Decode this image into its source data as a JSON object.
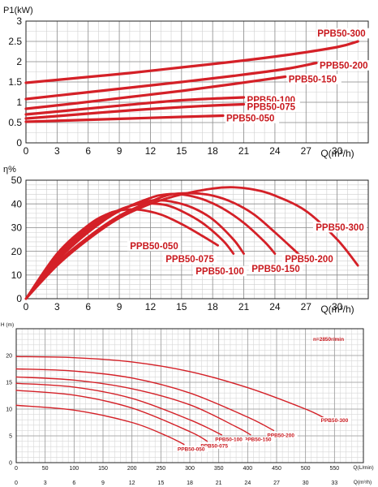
{
  "charts": [
    {
      "type": "line",
      "ylabel": "P1(kW)",
      "xlabel": "Q(m³/h)",
      "xlim": [
        0,
        33
      ],
      "ylim": [
        0,
        3
      ],
      "xticks": [
        0,
        3,
        6,
        9,
        12,
        15,
        18,
        21,
        24,
        27,
        30
      ],
      "yticks": [
        0,
        0.5,
        1,
        1.5,
        2,
        2.5,
        3
      ],
      "ytick_labels": [
        "0",
        "0.5",
        "1",
        "1.5",
        "2",
        "2.5",
        "3"
      ],
      "grid": true,
      "line_color": "#d42027",
      "series": [
        {
          "name": "PPB50-300",
          "x": [
            0,
            5,
            10,
            15,
            20,
            25,
            30,
            32
          ],
          "y": [
            1.48,
            1.6,
            1.72,
            1.86,
            2.0,
            2.16,
            2.36,
            2.5
          ]
        },
        {
          "name": "PPB50-200",
          "x": [
            0,
            5,
            10,
            15,
            20,
            25,
            28
          ],
          "y": [
            1.08,
            1.22,
            1.36,
            1.5,
            1.65,
            1.82,
            1.97
          ]
        },
        {
          "name": "PPB50-150",
          "x": [
            0,
            5,
            10,
            15,
            20,
            25
          ],
          "y": [
            0.84,
            0.98,
            1.13,
            1.28,
            1.45,
            1.63
          ]
        },
        {
          "name": "PPB50-100",
          "x": [
            0,
            5,
            10,
            15,
            19,
            21
          ],
          "y": [
            0.7,
            0.82,
            0.94,
            1.05,
            1.1,
            1.12
          ]
        },
        {
          "name": "PPB50-075",
          "x": [
            0,
            5,
            10,
            15,
            18,
            21
          ],
          "y": [
            0.6,
            0.7,
            0.8,
            0.88,
            0.92,
            0.95
          ]
        },
        {
          "name": "PPB50-050",
          "x": [
            0,
            5,
            10,
            15,
            19
          ],
          "y": [
            0.52,
            0.56,
            0.6,
            0.64,
            0.67
          ]
        }
      ]
    },
    {
      "type": "line",
      "ylabel": "η%",
      "xlabel": "Q(m³/h)",
      "xlim": [
        0,
        33
      ],
      "ylim": [
        0,
        50
      ],
      "xticks": [
        0,
        3,
        6,
        9,
        12,
        15,
        18,
        21,
        24,
        27,
        30
      ],
      "yticks": [
        0,
        10,
        20,
        30,
        40,
        50
      ],
      "ytick_labels": [
        "0",
        "10",
        "20",
        "30",
        "40",
        "50"
      ],
      "grid": true,
      "line_color": "#d42027",
      "series": [
        {
          "name": "PPB50-300",
          "x": [
            0,
            3,
            6,
            9,
            12,
            15,
            18,
            20,
            22,
            24,
            27,
            30,
            32
          ],
          "y": [
            0,
            14,
            25,
            34,
            40,
            44,
            46.5,
            47,
            46,
            43.5,
            37,
            25,
            14
          ]
        },
        {
          "name": "PPB50-200",
          "x": [
            0,
            3,
            6,
            9,
            12,
            14,
            16,
            18,
            20,
            22,
            24,
            26,
            27
          ],
          "y": [
            0,
            15,
            26,
            35,
            41,
            44,
            44.5,
            43.5,
            40.5,
            35.5,
            28,
            20,
            16
          ]
        },
        {
          "name": "PPB50-150",
          "x": [
            0,
            3,
            6,
            9,
            12,
            13.5,
            15,
            17,
            19,
            21,
            23,
            24
          ],
          "y": [
            0,
            16,
            28,
            37,
            42.5,
            44,
            44,
            42,
            38,
            32,
            24,
            19
          ]
        },
        {
          "name": "PPB50-100",
          "x": [
            0,
            3,
            6,
            9,
            11,
            12.5,
            14,
            16,
            18,
            20,
            21
          ],
          "y": [
            0,
            17,
            29,
            37,
            40.5,
            41.5,
            41,
            38.5,
            33.5,
            25,
            19
          ]
        },
        {
          "name": "PPB50-075",
          "x": [
            0,
            3,
            6,
            9,
            11,
            12,
            13.5,
            15,
            17,
            19,
            20
          ],
          "y": [
            0,
            18,
            30,
            37.5,
            40,
            40.2,
            39.5,
            37,
            32,
            24.5,
            19
          ]
        },
        {
          "name": "PPB50-050",
          "x": [
            0,
            3,
            6,
            8,
            9.5,
            11,
            13,
            15,
            17,
            18.5
          ],
          "y": [
            0,
            19,
            31,
            36,
            37.5,
            37.5,
            35.5,
            31.5,
            26.5,
            22.5
          ]
        }
      ],
      "labels": [
        {
          "text": "PPB50-050"
        },
        {
          "text": "PPB50-075"
        },
        {
          "text": "PPB50-100"
        },
        {
          "text": "PPB50-150"
        },
        {
          "text": "PPB50-200"
        },
        {
          "text": "PPB50-300"
        }
      ]
    },
    {
      "type": "line",
      "ylabel": "H (m)",
      "xlabel": "Q(L/min)",
      "xlabel2": "Q(m³/h)",
      "annotation": "n=2850r/min",
      "xlim": [
        0,
        600
      ],
      "ylim": [
        0,
        25
      ],
      "xticks": [
        0,
        50,
        100,
        150,
        200,
        250,
        300,
        350,
        400,
        450,
        500,
        550
      ],
      "xtick_labels": [
        "0",
        "50",
        "100",
        "150",
        "200",
        "250",
        "300",
        "350",
        "400",
        "450",
        "500",
        "550"
      ],
      "xticks2": [
        0,
        3,
        6,
        9,
        12,
        15,
        18,
        21,
        24,
        27,
        30,
        33
      ],
      "yticks": [
        0,
        5,
        10,
        15,
        20
      ],
      "ytick_labels": [
        "0",
        "5",
        "10",
        "15",
        "20"
      ],
      "grid": true,
      "line_color": "#d42027",
      "series": [
        {
          "name": "PPB50-300",
          "x": [
            0,
            100,
            200,
            300,
            400,
            500,
            535
          ],
          "y": [
            19.8,
            19.6,
            18.8,
            17,
            14,
            10,
            8.2
          ]
        },
        {
          "name": "PPB50-200",
          "x": [
            0,
            100,
            200,
            300,
            400,
            445
          ],
          "y": [
            17.5,
            17.1,
            15.8,
            13,
            8.5,
            6
          ]
        },
        {
          "name": "PPB50-150",
          "x": [
            0,
            100,
            200,
            300,
            380,
            405
          ],
          "y": [
            16,
            15.4,
            13.8,
            10.8,
            6.7,
            5.2
          ]
        },
        {
          "name": "PPB50-100",
          "x": [
            0,
            100,
            200,
            300,
            355
          ],
          "y": [
            14.8,
            14.1,
            12,
            8,
            5.2
          ]
        },
        {
          "name": "PPB50-075",
          "x": [
            0,
            100,
            200,
            300,
            330
          ],
          "y": [
            13.5,
            12.6,
            10.2,
            5.8,
            4
          ]
        },
        {
          "name": "PPB50-050",
          "x": [
            0,
            100,
            200,
            260,
            290
          ],
          "y": [
            10.7,
            9.8,
            7.5,
            5,
            3.4
          ]
        }
      ]
    }
  ]
}
